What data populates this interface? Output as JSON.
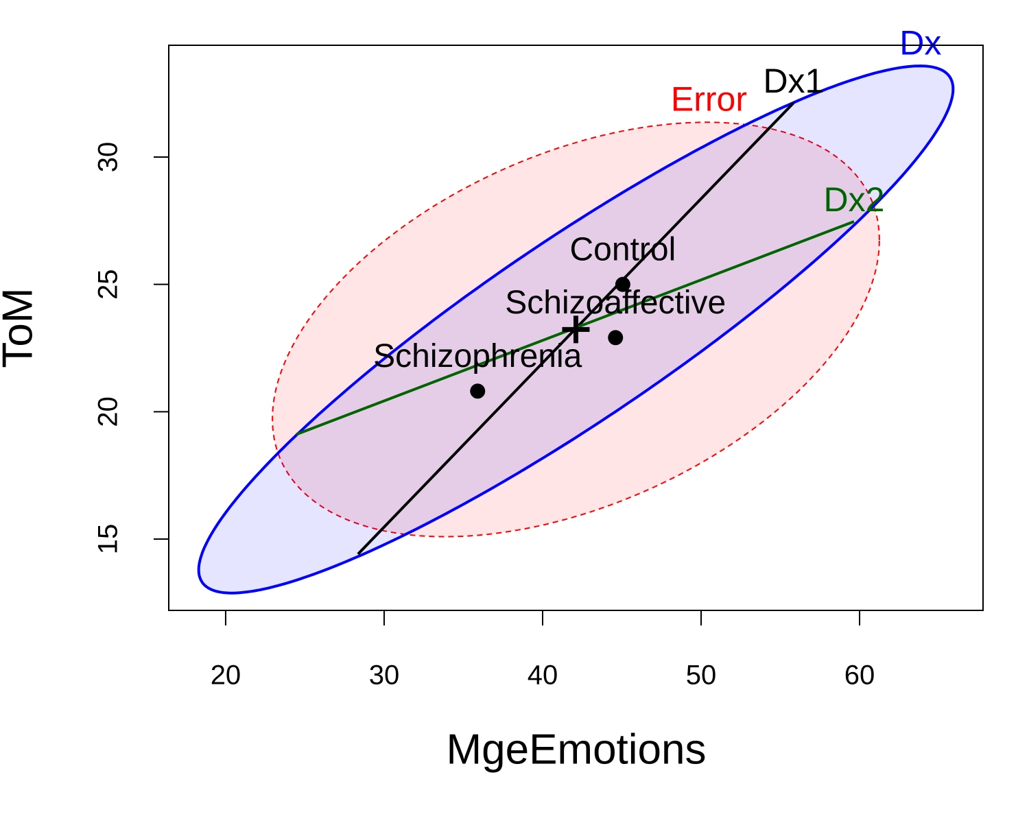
{
  "chart_data": {
    "type": "he-plot",
    "xlabel": "MgeEmotions",
    "ylabel": "ToM",
    "xlim": [
      16.41,
      67.79
    ],
    "ylim": [
      12.2,
      34.39
    ],
    "xticks": [
      20,
      30,
      40,
      50,
      60
    ],
    "yticks": [
      15,
      20,
      25,
      30
    ],
    "categories": [
      "Control",
      "Schizoaffective",
      "Schizophrenia"
    ],
    "x": [
      45.06,
      44.6,
      35.9
    ],
    "y": [
      25,
      22.91,
      20.81
    ],
    "center": [
      42.1,
      23.23
    ],
    "ellipses": [
      {
        "name": "Error",
        "color": "#ff0000",
        "dashed": true,
        "shape": [
          [
            19.15,
            0
          ],
          [
            3.51,
            7.34
          ]
        ]
      },
      {
        "name": "Dx",
        "color": "#0000ff",
        "dashed": false,
        "shape": [
          [
            23.8,
            0
          ],
          [
            9.44,
            4.24
          ]
        ]
      }
    ],
    "lines": [
      {
        "name": "Dx1",
        "color": "#000000",
        "x": [
          28.35,
          55.84
        ],
        "y": [
          14.41,
          32.13
        ]
      },
      {
        "name": "Dx2",
        "color": "#006400",
        "x": [
          24.46,
          59.65
        ],
        "y": [
          19.11,
          27.47
        ]
      }
    ]
  }
}
